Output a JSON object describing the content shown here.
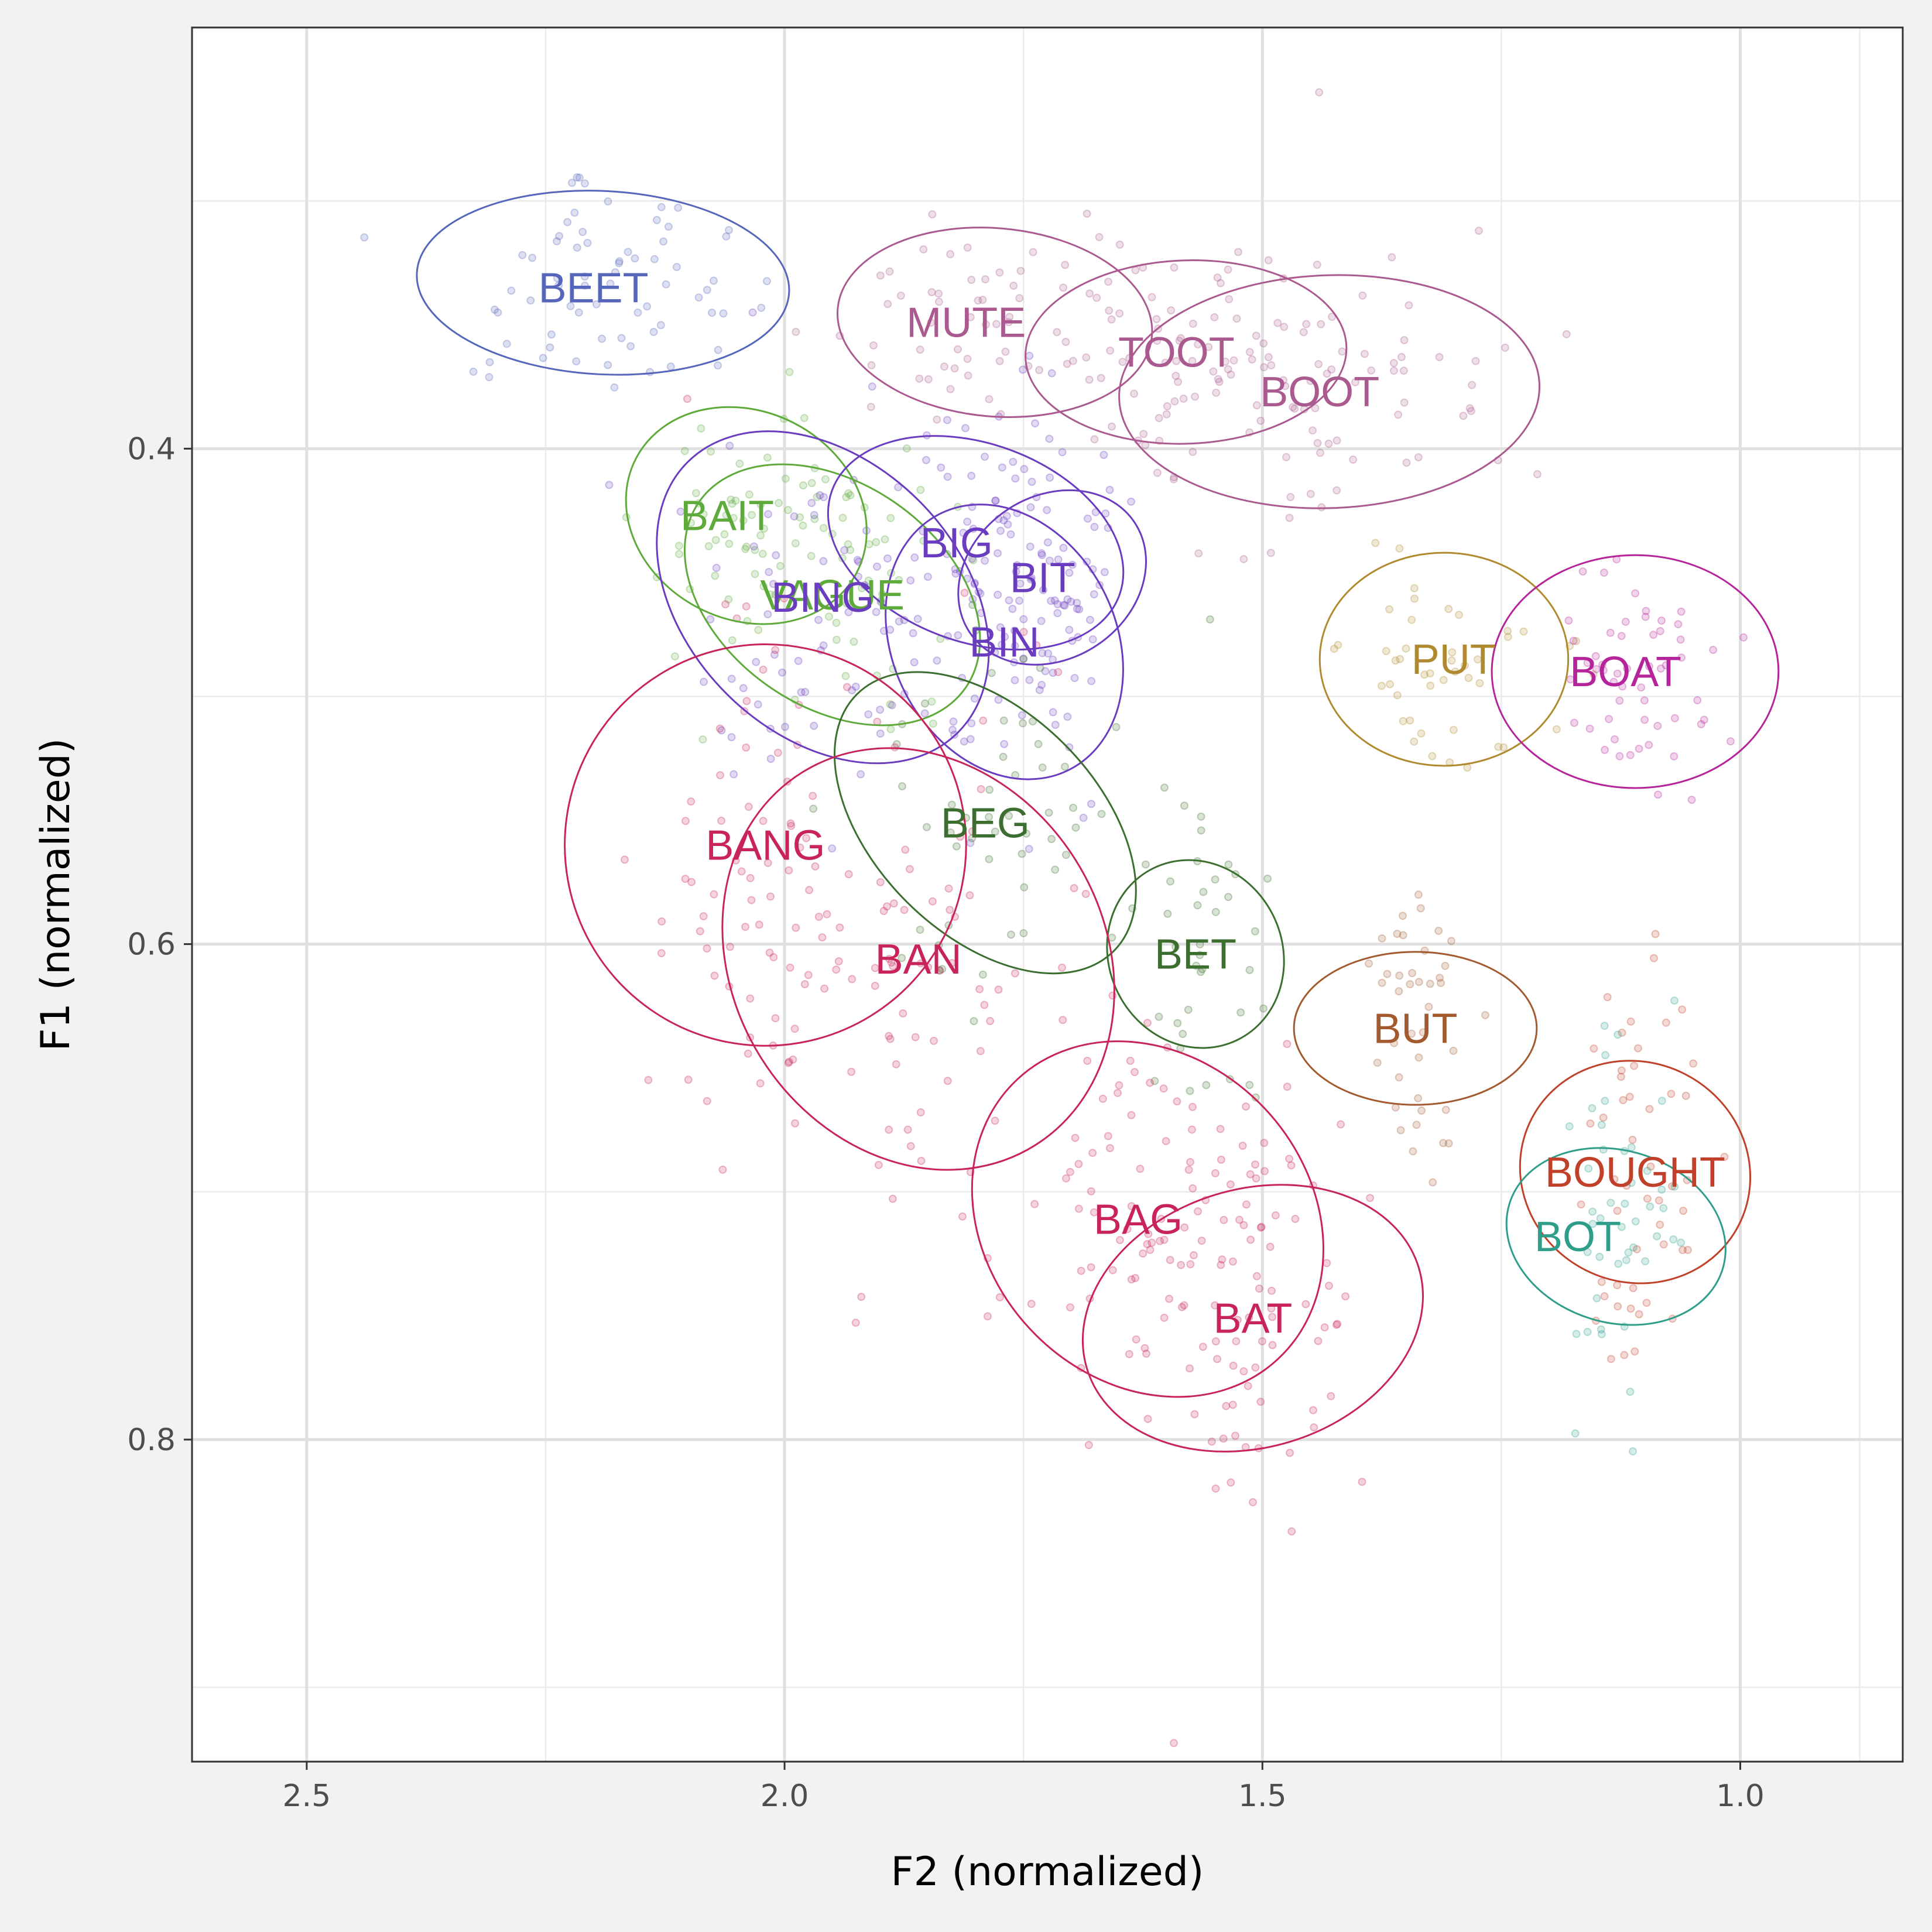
{
  "chart_data": {
    "type": "scatter",
    "title": "",
    "xlabel": "F2 (normalized)",
    "ylabel": "F1 (normalized)",
    "x_reversed": true,
    "y_reversed": true,
    "xlim": [
      2.62,
      0.83
    ],
    "ylim": [
      0.23,
      0.93
    ],
    "x_ticks": [
      2.5,
      2.0,
      1.5,
      1.0
    ],
    "x_tick_labels": [
      "2.5",
      "2.0",
      "1.5",
      "1.0"
    ],
    "y_ticks": [
      0.4,
      0.6,
      0.8
    ],
    "y_tick_labels": [
      "0.4",
      "0.6",
      "0.8"
    ],
    "x_minor": [
      2.25,
      1.75,
      1.25,
      0.875
    ],
    "y_minor": [
      0.3,
      0.5,
      0.7,
      0.9
    ],
    "grid": true,
    "legend": "none",
    "point_opacity": 0.2,
    "series": [
      {
        "name": "BEET",
        "color": "#5566bb",
        "centroid": [
          2.19,
          0.333
        ],
        "sd": [
          0.09,
          0.025
        ],
        "points": 70
      },
      {
        "name": "MUTE",
        "color": "#aa5a8e",
        "centroid": [
          1.78,
          0.349
        ],
        "sd": [
          0.09,
          0.025
        ],
        "points": 60
      },
      {
        "name": "TOOT",
        "color": "#aa5a8e",
        "centroid": [
          1.58,
          0.361
        ],
        "sd": [
          0.09,
          0.025
        ],
        "points": 60
      },
      {
        "name": "BOOT",
        "color": "#aa5a8e",
        "centroid": [
          1.43,
          0.377
        ],
        "sd": [
          0.1,
          0.028
        ],
        "points": 70
      },
      {
        "name": "BAIT",
        "color": "#5eaa3a",
        "centroid": [
          2.04,
          0.427
        ],
        "sd": [
          0.06,
          0.025
        ],
        "points": 50
      },
      {
        "name": "VAGUE",
        "color": "#5eaa3a",
        "centroid": [
          1.95,
          0.459
        ],
        "sd": [
          0.07,
          0.03
        ],
        "points": 50
      },
      {
        "name": "BING",
        "color": "#6a3cc0",
        "centroid": [
          1.96,
          0.46
        ],
        "sd": [
          0.08,
          0.04
        ],
        "points": 60
      },
      {
        "name": "BIG",
        "color": "#6a3cc0",
        "centroid": [
          1.8,
          0.438
        ],
        "sd": [
          0.06,
          0.03
        ],
        "points": 55
      },
      {
        "name": "BIT",
        "color": "#6a3cc0",
        "centroid": [
          1.72,
          0.452
        ],
        "sd": [
          0.04,
          0.03
        ],
        "points": 45
      },
      {
        "name": "BIN",
        "color": "#6a3cc0",
        "centroid": [
          1.77,
          0.478
        ],
        "sd": [
          0.05,
          0.04
        ],
        "points": 55
      },
      {
        "name": "BEG",
        "color": "#3b6e2f",
        "centroid": [
          1.79,
          0.551
        ],
        "sd": [
          0.06,
          0.04
        ],
        "points": 50
      },
      {
        "name": "BET",
        "color": "#3b6e2f",
        "centroid": [
          1.57,
          0.604
        ],
        "sd": [
          0.03,
          0.035
        ],
        "points": 40
      },
      {
        "name": "BANG",
        "color": "#c8245a",
        "centroid": [
          2.02,
          0.56
        ],
        "sd": [
          0.06,
          0.06
        ],
        "points": 70
      },
      {
        "name": "BAN",
        "color": "#c8245a",
        "centroid": [
          1.86,
          0.606
        ],
        "sd": [
          0.07,
          0.06
        ],
        "points": 70
      },
      {
        "name": "BAG",
        "color": "#c8245a",
        "centroid": [
          1.62,
          0.711
        ],
        "sd": [
          0.07,
          0.05
        ],
        "points": 80
      },
      {
        "name": "BAT",
        "color": "#c8245a",
        "centroid": [
          1.51,
          0.751
        ],
        "sd": [
          0.05,
          0.05
        ],
        "points": 70
      },
      {
        "name": "PUT",
        "color": "#b08a2e",
        "centroid": [
          1.31,
          0.485
        ],
        "sd": [
          0.05,
          0.025
        ],
        "points": 45
      },
      {
        "name": "BOAT",
        "color": "#b5249a",
        "centroid": [
          1.11,
          0.49
        ],
        "sd": [
          0.05,
          0.025
        ],
        "points": 55
      },
      {
        "name": "BUT",
        "color": "#a35a2e",
        "centroid": [
          1.34,
          0.634
        ],
        "sd": [
          0.03,
          0.03
        ],
        "points": 40
      },
      {
        "name": "BOUGHT",
        "color": "#c0402a",
        "centroid": [
          1.11,
          0.692
        ],
        "sd": [
          0.035,
          0.045
        ],
        "points": 50
      },
      {
        "name": "BOT",
        "color": "#2e9e8a",
        "centroid": [
          1.13,
          0.718
        ],
        "sd": [
          0.03,
          0.04
        ],
        "points": 45
      }
    ],
    "ellipses": [
      {
        "name": "BEET",
        "cx": 2.19,
        "cy": 0.333,
        "rx": 0.195,
        "ry": 0.037,
        "angle": 3
      },
      {
        "name": "MUTE",
        "cx": 1.78,
        "cy": 0.349,
        "rx": 0.165,
        "ry": 0.038,
        "angle": 5
      },
      {
        "name": "TOOT",
        "cx": 1.58,
        "cy": 0.361,
        "rx": 0.168,
        "ry": 0.037,
        "angle": -2
      },
      {
        "name": "BOOT",
        "cx": 1.43,
        "cy": 0.377,
        "rx": 0.22,
        "ry": 0.047,
        "angle": -2
      },
      {
        "name": "BAIT",
        "cx": 2.04,
        "cy": 0.427,
        "rx": 0.13,
        "ry": 0.042,
        "angle": 27
      },
      {
        "name": "VAGUE",
        "cx": 1.95,
        "cy": 0.459,
        "rx": 0.17,
        "ry": 0.045,
        "angle": 35
      },
      {
        "name": "BING",
        "cx": 1.96,
        "cy": 0.46,
        "rx": 0.2,
        "ry": 0.055,
        "angle": 45
      },
      {
        "name": "BIG",
        "cx": 1.8,
        "cy": 0.438,
        "rx": 0.16,
        "ry": 0.04,
        "angle": 20
      },
      {
        "name": "BIT",
        "cx": 1.72,
        "cy": 0.452,
        "rx": 0.085,
        "ry": 0.04,
        "angle": 56
      },
      {
        "name": "BIN",
        "cx": 1.77,
        "cy": 0.478,
        "rx": 0.15,
        "ry": 0.045,
        "angle": 63
      },
      {
        "name": "BEG",
        "cx": 1.79,
        "cy": 0.551,
        "rx": 0.19,
        "ry": 0.045,
        "angle": 45
      },
      {
        "name": "BET",
        "cx": 1.57,
        "cy": 0.604,
        "rx": 0.1,
        "ry": 0.035,
        "angle": 64
      },
      {
        "name": "BANG",
        "cx": 2.02,
        "cy": 0.56,
        "rx": 0.21,
        "ry": 0.081,
        "angle": 80
      },
      {
        "name": "BAN",
        "cx": 1.86,
        "cy": 0.606,
        "rx": 0.23,
        "ry": 0.075,
        "angle": 58
      },
      {
        "name": "BAG",
        "cx": 1.62,
        "cy": 0.711,
        "rx": 0.2,
        "ry": 0.065,
        "angle": 47
      },
      {
        "name": "BAT",
        "cx": 1.51,
        "cy": 0.751,
        "rx": 0.135,
        "ry": 0.07,
        "angle": 73
      },
      {
        "name": "PUT",
        "cx": 1.31,
        "cy": 0.485,
        "rx": 0.13,
        "ry": 0.043,
        "angle": 0
      },
      {
        "name": "BOAT",
        "cx": 1.11,
        "cy": 0.49,
        "rx": 0.15,
        "ry": 0.047,
        "angle": 0
      },
      {
        "name": "BUT",
        "cx": 1.34,
        "cy": 0.634,
        "rx": 0.08,
        "ry": 0.049,
        "angle": 90
      },
      {
        "name": "BOUGHT",
        "cx": 1.11,
        "cy": 0.692,
        "rx": 0.115,
        "ry": 0.047,
        "angle": -63
      },
      {
        "name": "BOT",
        "cx": 1.13,
        "cy": 0.718,
        "rx": 0.09,
        "ry": 0.045,
        "angle": -73
      }
    ],
    "labels": [
      {
        "text": "BEET",
        "x": 2.2,
        "y": 0.335,
        "color": "#5566bb"
      },
      {
        "text": "MUTE",
        "x": 1.81,
        "y": 0.349,
        "color": "#aa5a8e"
      },
      {
        "text": "TOOT",
        "x": 1.59,
        "y": 0.361,
        "color": "#aa5a8e"
      },
      {
        "text": "BOOT",
        "x": 1.44,
        "y": 0.377,
        "color": "#aa5a8e"
      },
      {
        "text": "BAIT",
        "x": 2.06,
        "y": 0.427,
        "color": "#5eaa3a"
      },
      {
        "text": "VAGUE",
        "x": 1.95,
        "y": 0.459,
        "color": "#5eaa3a"
      },
      {
        "text": "BING",
        "x": 1.96,
        "y": 0.46,
        "color": "#6a3cc0"
      },
      {
        "text": "BIG",
        "x": 1.82,
        "y": 0.438,
        "color": "#6a3cc0"
      },
      {
        "text": "BIT",
        "x": 1.73,
        "y": 0.452,
        "color": "#6a3cc0"
      },
      {
        "text": "BIN",
        "x": 1.77,
        "y": 0.478,
        "color": "#6a3cc0"
      },
      {
        "text": "BEG",
        "x": 1.79,
        "y": 0.551,
        "color": "#3b6e2f"
      },
      {
        "text": "BET",
        "x": 1.57,
        "y": 0.604,
        "color": "#3b6e2f"
      },
      {
        "text": "BANG",
        "x": 2.02,
        "y": 0.56,
        "color": "#c8245a"
      },
      {
        "text": "BAN",
        "x": 1.86,
        "y": 0.606,
        "color": "#c8245a"
      },
      {
        "text": "BAG",
        "x": 1.63,
        "y": 0.711,
        "color": "#c8245a"
      },
      {
        "text": "BAT",
        "x": 1.51,
        "y": 0.751,
        "color": "#c8245a"
      },
      {
        "text": "PUT",
        "x": 1.3,
        "y": 0.485,
        "color": "#b08a2e"
      },
      {
        "text": "BOAT",
        "x": 1.12,
        "y": 0.49,
        "color": "#b5249a"
      },
      {
        "text": "BUT",
        "x": 1.34,
        "y": 0.634,
        "color": "#a35a2e"
      },
      {
        "text": "BOUGHT",
        "x": 1.11,
        "y": 0.692,
        "color": "#c0402a"
      },
      {
        "text": "BOT",
        "x": 1.17,
        "y": 0.718,
        "color": "#2e9e8a"
      }
    ]
  }
}
